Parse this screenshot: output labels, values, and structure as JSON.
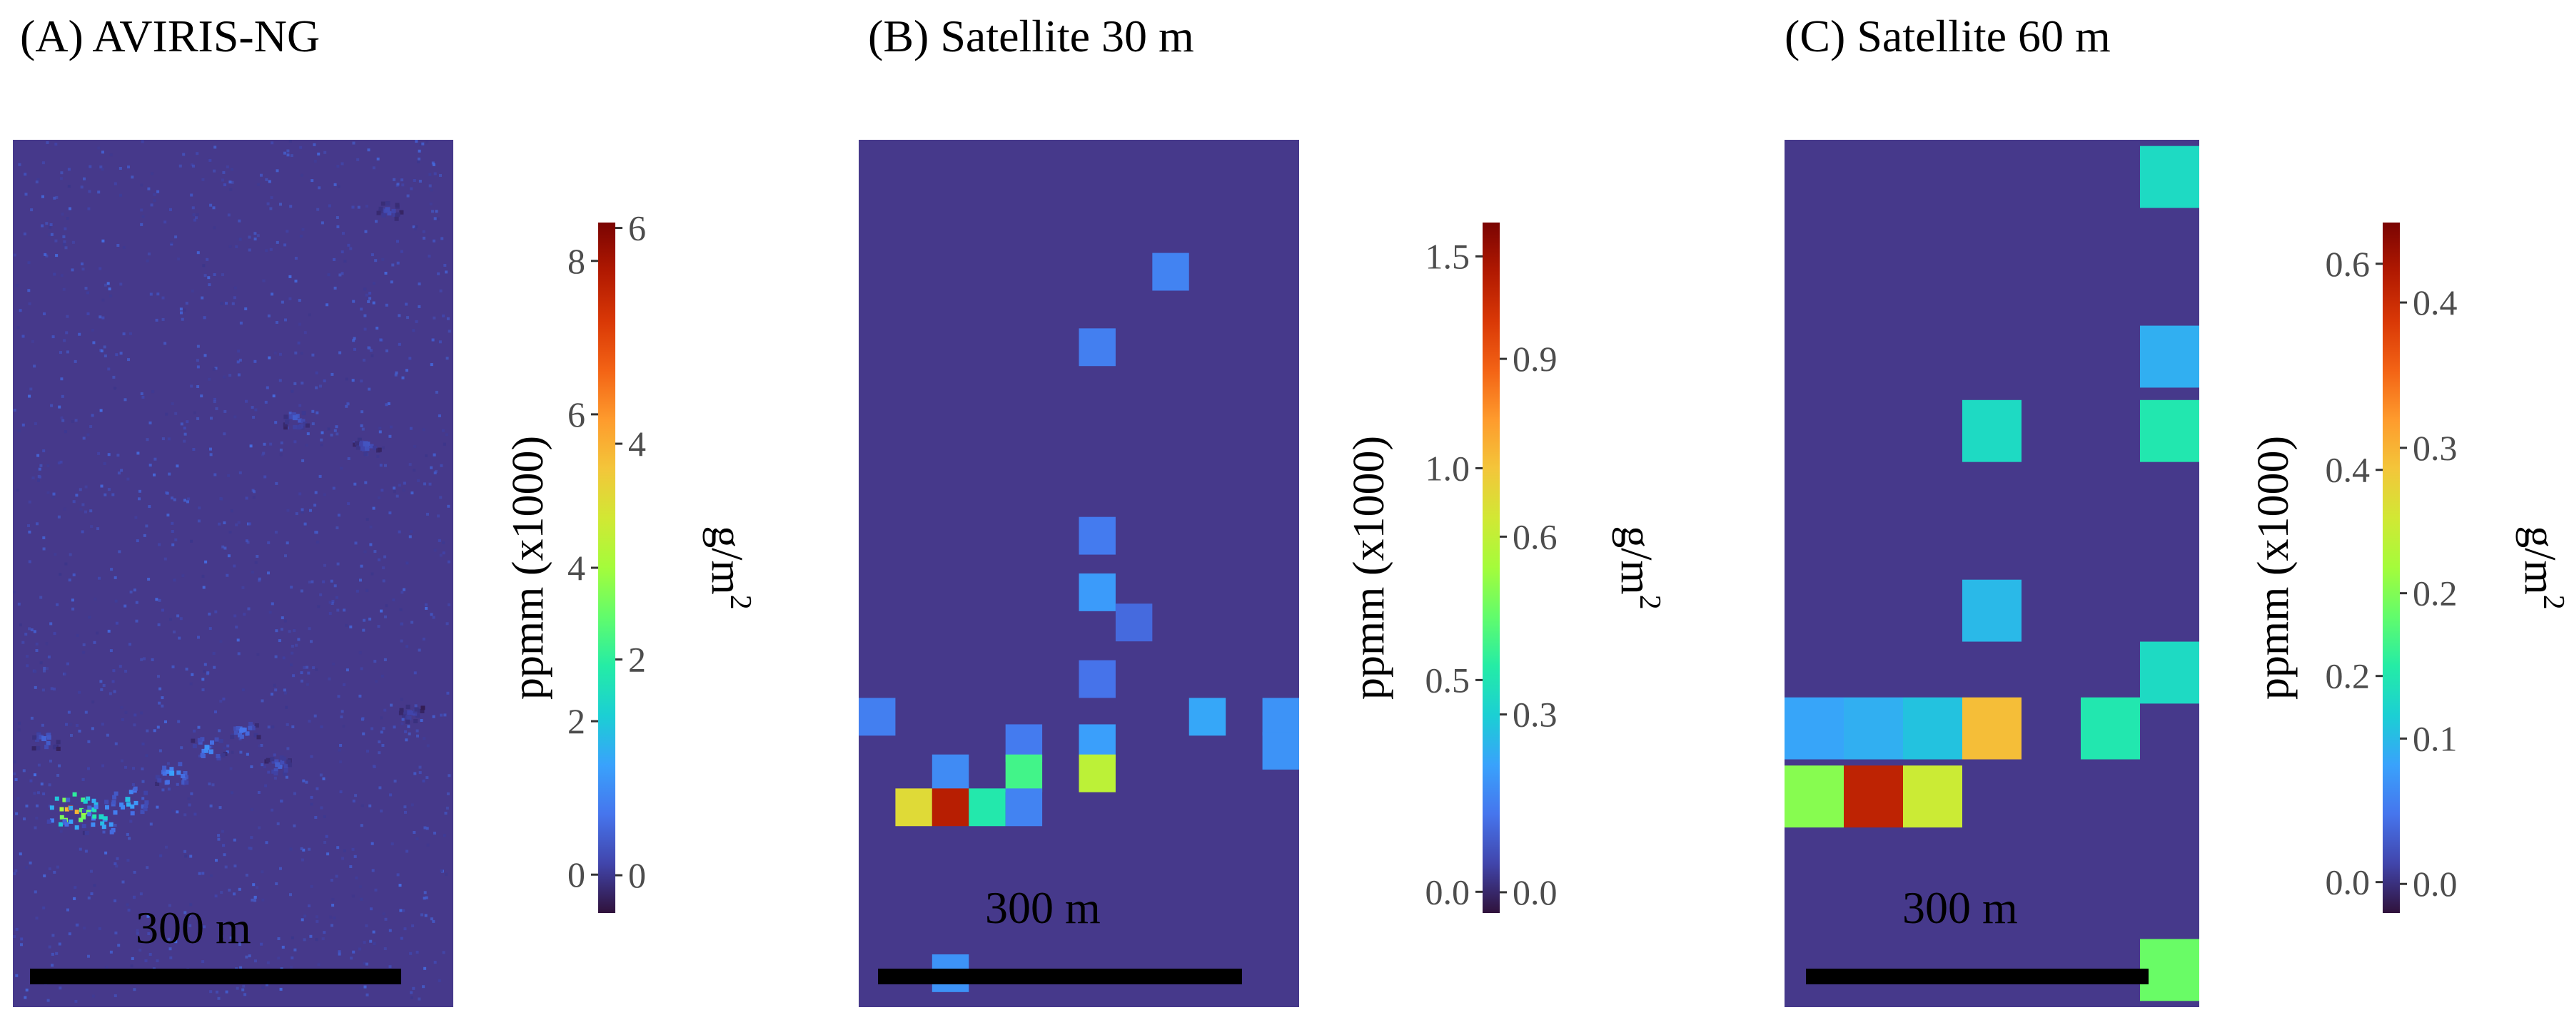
{
  "colors": {
    "background_map": "#46398b",
    "scale_bar": "#000000",
    "colorbar_stops": [
      "#30123b",
      "#4145ab",
      "#4675ed",
      "#39a2fc",
      "#1bcfd4",
      "#24eca6",
      "#61fc6c",
      "#a4fc3b",
      "#d1e834",
      "#f3c63a",
      "#fe9b2d",
      "#f36315",
      "#d93806",
      "#b11901",
      "#7a0402"
    ]
  },
  "chart_data": [
    {
      "type": "heatmap",
      "panel": "A",
      "title": "(A) AVIRIS-NG",
      "scale_bar_label": "300 m",
      "grid": false,
      "legend": "colorbar-right",
      "raster": {
        "description_resolution": "fine",
        "plume_hotspots": [
          {
            "col": 0.13,
            "row": 0.77,
            "value": 6.8
          },
          {
            "col": 0.16,
            "row": 0.775,
            "value": 4.2
          },
          {
            "col": 0.2,
            "row": 0.78,
            "value": 2.6
          },
          {
            "col": 0.26,
            "row": 0.76,
            "value": 2.2
          },
          {
            "col": 0.36,
            "row": 0.73,
            "value": 1.8
          },
          {
            "col": 0.44,
            "row": 0.7,
            "value": 1.6
          },
          {
            "col": 0.52,
            "row": 0.68,
            "value": 1.2
          },
          {
            "col": 0.6,
            "row": 0.72,
            "value": 0.9
          },
          {
            "col": 0.07,
            "row": 0.69,
            "value": 1.0
          },
          {
            "col": 0.64,
            "row": 0.32,
            "value": 0.9
          },
          {
            "col": 0.8,
            "row": 0.35,
            "value": 0.8
          },
          {
            "col": 0.85,
            "row": 0.08,
            "value": 0.7
          },
          {
            "col": 0.9,
            "row": 0.66,
            "value": 0.6
          }
        ]
      },
      "colorbar": {
        "left_axis_label": "ppmm (x1000)",
        "left_ticks": [
          "0",
          "2",
          "4",
          "6",
          "8"
        ],
        "left_tick_values": [
          0,
          2,
          4,
          6,
          8
        ],
        "left_range": [
          -0.5,
          8.5
        ],
        "right_axis_label": "g/m²",
        "right_axis_label_base": "g/m",
        "right_axis_label_sup": "2",
        "right_ticks": [
          "0",
          "2",
          "4",
          "6"
        ],
        "right_tick_values": [
          0,
          2,
          4,
          6
        ],
        "right_range": [
          -0.35,
          6.05
        ]
      }
    },
    {
      "type": "heatmap",
      "panel": "B",
      "title": "(B) Satellite 30 m",
      "scale_bar_label": "300 m",
      "grid": false,
      "legend": "colorbar-right",
      "raster": {
        "cols": 12,
        "rows": 23,
        "cells": [
          {
            "col": 8,
            "row": 3,
            "value": 0.26
          },
          {
            "col": 6,
            "row": 5,
            "value": 0.25
          },
          {
            "col": 6,
            "row": 10,
            "value": 0.24
          },
          {
            "col": 6,
            "row": 11.5,
            "value": 0.32
          },
          {
            "col": 7,
            "row": 12.3,
            "value": 0.2
          },
          {
            "col": 6,
            "row": 13.8,
            "value": 0.22
          },
          {
            "col": 0,
            "row": 14.8,
            "value": 0.25
          },
          {
            "col": 9,
            "row": 14.8,
            "value": 0.35
          },
          {
            "col": 11,
            "row": 14.8,
            "value": 0.3
          },
          {
            "col": 11,
            "row": 15.7,
            "value": 0.3
          },
          {
            "col": 4,
            "row": 15.5,
            "value": 0.24
          },
          {
            "col": 6,
            "row": 15.5,
            "value": 0.33
          },
          {
            "col": 2,
            "row": 16.3,
            "value": 0.28
          },
          {
            "col": 4,
            "row": 16.3,
            "value": 0.62
          },
          {
            "col": 6,
            "row": 16.3,
            "value": 0.85
          },
          {
            "col": 1,
            "row": 17.2,
            "value": 0.95
          },
          {
            "col": 2,
            "row": 17.2,
            "value": 1.45
          },
          {
            "col": 3,
            "row": 17.2,
            "value": 0.55
          },
          {
            "col": 4,
            "row": 17.2,
            "value": 0.26
          },
          {
            "col": 2,
            "row": 21.6,
            "value": 0.3
          }
        ]
      },
      "colorbar": {
        "left_axis_label": "ppmm (x1000)",
        "left_ticks": [
          "0.0",
          "0.5",
          "1.0",
          "1.5"
        ],
        "left_tick_values": [
          0.0,
          0.5,
          1.0,
          1.5
        ],
        "left_range": [
          -0.05,
          1.58
        ],
        "right_axis_label": "g/m²",
        "right_axis_label_base": "g/m",
        "right_axis_label_sup": "2",
        "right_ticks": [
          "0.0",
          "0.3",
          "0.6",
          "0.9"
        ],
        "right_tick_values": [
          0.0,
          0.3,
          0.6,
          0.9
        ],
        "right_range": [
          -0.035,
          1.13
        ]
      }
    },
    {
      "type": "heatmap",
      "panel": "C",
      "title": "(C) Satellite 60 m",
      "scale_bar_label": "300 m",
      "grid": false,
      "legend": "colorbar-right",
      "raster": {
        "cols": 7,
        "rows": 14,
        "cells": [
          {
            "col": 6,
            "row": 0.1,
            "value": 0.2
          },
          {
            "col": 6,
            "row": 3.0,
            "value": 0.15
          },
          {
            "col": 3,
            "row": 4.2,
            "value": 0.2
          },
          {
            "col": 6,
            "row": 4.2,
            "value": 0.22
          },
          {
            "col": 3,
            "row": 7.1,
            "value": 0.16
          },
          {
            "col": 6,
            "row": 8.1,
            "value": 0.2
          },
          {
            "col": 0,
            "row": 9.0,
            "value": 0.14
          },
          {
            "col": 1,
            "row": 9.0,
            "value": 0.15
          },
          {
            "col": 2,
            "row": 9.0,
            "value": 0.17
          },
          {
            "col": 3,
            "row": 9.0,
            "value": 0.42
          },
          {
            "col": 5,
            "row": 9.0,
            "value": 0.22
          },
          {
            "col": 0,
            "row": 10.1,
            "value": 0.3
          },
          {
            "col": 1,
            "row": 10.1,
            "value": 0.58
          },
          {
            "col": 2,
            "row": 10.1,
            "value": 0.36
          },
          {
            "col": 6,
            "row": 12.9,
            "value": 0.28
          }
        ]
      },
      "colorbar": {
        "left_axis_label": "ppmm (x1000)",
        "left_ticks": [
          "0.0",
          "0.2",
          "0.4",
          "0.6"
        ],
        "left_tick_values": [
          0.0,
          0.2,
          0.4,
          0.6
        ],
        "left_range": [
          -0.03,
          0.64
        ],
        "right_axis_label": "g/m²",
        "right_axis_label_base": "g/m",
        "right_axis_label_sup": "2",
        "right_ticks": [
          "0.0",
          "0.1",
          "0.2",
          "0.3",
          "0.4"
        ],
        "right_tick_values": [
          0.0,
          0.1,
          0.2,
          0.3,
          0.4
        ],
        "right_range": [
          -0.02,
          0.455
        ]
      }
    }
  ]
}
